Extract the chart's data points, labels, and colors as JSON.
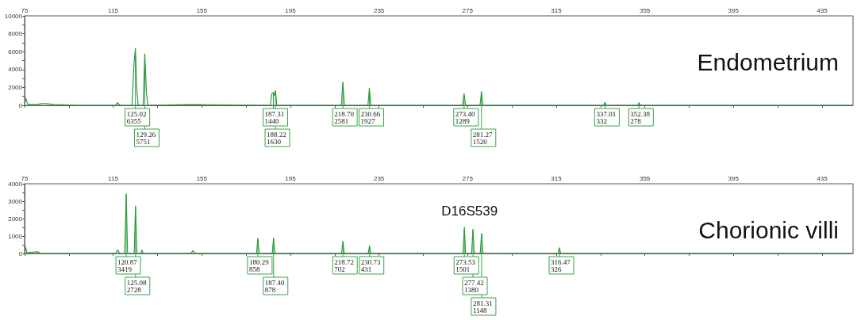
{
  "chart_data": [
    {
      "type": "line",
      "title": "Endometrium",
      "xlim": [
        75,
        449
      ],
      "xticks": [
        75,
        {
          "value": 95,
          "label": null
        },
        115,
        {
          "value": 135,
          "label": null
        },
        155,
        {
          "value": 175,
          "label": null
        },
        195,
        {
          "value": 215,
          "label": null
        },
        235,
        {
          "value": 255,
          "label": null
        },
        275,
        {
          "value": 295,
          "label": null
        },
        315,
        {
          "value": 335,
          "label": null
        },
        355,
        {
          "value": 375,
          "label": null
        },
        395,
        {
          "value": 415,
          "label": null
        },
        435
      ],
      "ylim": [
        0,
        10000
      ],
      "yticks": [
        0,
        {
          "value": 1000,
          "label": null
        },
        2000,
        {
          "value": 3000,
          "label": null
        },
        4000,
        {
          "value": 5000,
          "label": null
        },
        6000,
        {
          "value": 7000,
          "label": null
        },
        8000,
        {
          "value": 9000,
          "label": null
        },
        10000
      ],
      "grid": false,
      "marker": "none",
      "series": [
        {
          "color": "#2e9a3c",
          "x": [
            75,
            75.5,
            76.5,
            80,
            83,
            85,
            88,
            100,
            116,
            117,
            118,
            123.5,
            124.4,
            125.02,
            125.7,
            126.3,
            128.5,
            129.26,
            130,
            130.6,
            150,
            186,
            186.6,
            187.31,
            187.8,
            188.22,
            188.9,
            218,
            218.7,
            219.4,
            230,
            230.66,
            231.3,
            272.7,
            273.4,
            274.1,
            280.6,
            281.27,
            281.9,
            336.4,
            337.01,
            337.6,
            351.8,
            352.38,
            353,
            449
          ],
          "values": [
            0,
            800,
            100,
            100,
            200,
            200,
            100,
            0,
            0,
            300,
            0,
            0,
            4700,
            6355,
            1500,
            0,
            0,
            5751,
            1500,
            0,
            100,
            0,
            1300,
            1440,
            1100,
            1630,
            0,
            0,
            2581,
            0,
            0,
            1927,
            0,
            0,
            1289,
            0,
            0,
            1520,
            0,
            0,
            332,
            0,
            0,
            278,
            0,
            0
          ]
        }
      ],
      "annotations": [
        {
          "text": "125.02\n6355",
          "x": 125.02,
          "y": 6355
        },
        {
          "text": "129.26\n5751",
          "x": 129.26,
          "y": 5751
        },
        {
          "text": "187.31\n1440",
          "x": 187.31,
          "y": 1440
        },
        {
          "text": "188.22\n1630",
          "x": 188.22,
          "y": 1630
        },
        {
          "text": "218.70\n2581",
          "x": 218.7,
          "y": 2581
        },
        {
          "text": "230.66\n1927",
          "x": 230.66,
          "y": 1927
        },
        {
          "text": "273.40\n1289",
          "x": 273.4,
          "y": 1289
        },
        {
          "text": "281.27\n1520",
          "x": 281.27,
          "y": 1520
        },
        {
          "text": "337.01\n332",
          "x": 337.01,
          "y": 332
        },
        {
          "text": "352.38\n278",
          "x": 352.38,
          "y": 278
        }
      ]
    },
    {
      "type": "line",
      "title": "Chorionic villi",
      "xlim": [
        75,
        449
      ],
      "xticks": [
        75,
        {
          "value": 95,
          "label": null
        },
        115,
        {
          "value": 135,
          "label": null
        },
        155,
        {
          "value": 175,
          "label": null
        },
        195,
        {
          "value": 215,
          "label": null
        },
        235,
        {
          "value": 255,
          "label": null
        },
        275,
        {
          "value": 295,
          "label": null
        },
        315,
        {
          "value": 335,
          "label": null
        },
        355,
        {
          "value": 375,
          "label": null
        },
        395,
        {
          "value": 415,
          "label": null
        },
        435
      ],
      "ylim": [
        0,
        4000
      ],
      "yticks": [
        0,
        {
          "value": 500,
          "label": null
        },
        1000,
        {
          "value": 1500,
          "label": null
        },
        2000,
        {
          "value": 2500,
          "label": null
        },
        3000,
        {
          "value": 3500,
          "label": null
        },
        4000
      ],
      "grid": false,
      "marker": "none",
      "series": [
        {
          "color": "#2e9a3c",
          "x": [
            75,
            75.5,
            76,
            81,
            82,
            116,
            117,
            118,
            120.2,
            120.87,
            121.5,
            124.5,
            125.08,
            125.7,
            127.5,
            128,
            128.5,
            150,
            151,
            152,
            179.7,
            180.29,
            180.9,
            186.8,
            187.4,
            188,
            218.1,
            218.72,
            219.3,
            230.1,
            230.73,
            231.3,
            272.9,
            273.53,
            274.1,
            276.8,
            277.42,
            278,
            280.7,
            281.31,
            281.9,
            315.9,
            316.47,
            317,
            449
          ],
          "values": [
            0,
            350,
            50,
            100,
            0,
            0,
            200,
            0,
            0,
            3419,
            0,
            0,
            2728,
            0,
            0,
            200,
            0,
            0,
            150,
            0,
            0,
            858,
            0,
            0,
            878,
            0,
            0,
            702,
            0,
            0,
            431,
            0,
            0,
            1501,
            0,
            0,
            1380,
            0,
            0,
            1148,
            0,
            0,
            326,
            0,
            0
          ]
        }
      ],
      "annotations": [
        {
          "text": "120.87\n3419",
          "x": 120.87,
          "y": 3419
        },
        {
          "text": "125.08\n2728",
          "x": 125.08,
          "y": 2728
        },
        {
          "text": "180.29\n858",
          "x": 180.29,
          "y": 858
        },
        {
          "text": "187.40\n878",
          "x": 187.4,
          "y": 878
        },
        {
          "text": "218.72\n702",
          "x": 218.72,
          "y": 702
        },
        {
          "text": "230.73\n431",
          "x": 230.73,
          "y": 431
        },
        "D16S539",
        {
          "text": "273.53\n1501",
          "x": 273.53,
          "y": 1501
        },
        {
          "text": "277.42\n1380",
          "x": 277.42,
          "y": 1380
        },
        {
          "text": "281.31\n1148",
          "x": 281.31,
          "y": 1148
        },
        {
          "text": "316.47\n326",
          "x": 316.47,
          "y": 326
        }
      ]
    }
  ]
}
